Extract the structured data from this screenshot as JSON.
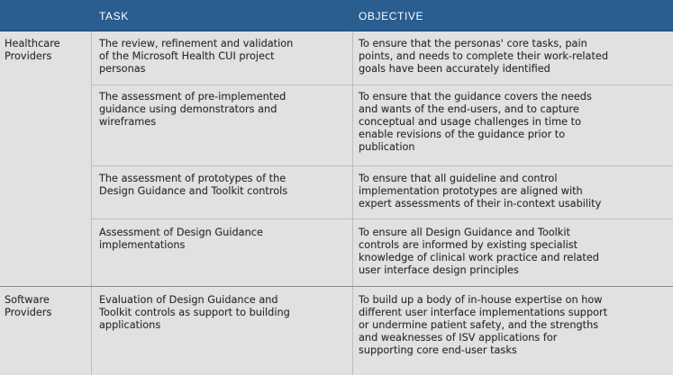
{
  "headers": {
    "task": "TASK",
    "objective": "OBJECTIVE"
  },
  "groups": [
    {
      "label": [
        "Healthcare",
        "Providers"
      ]
    },
    {
      "label": [
        "Software",
        "Providers"
      ]
    }
  ],
  "rows": [
    {
      "task": [
        "The review, refinement and validation",
        "of the Microsoft Health CUI project",
        "personas"
      ],
      "objective": [
        "To ensure that the personas' core tasks, pain",
        "points, and needs to complete their work-related",
        "goals have been accurately identified"
      ]
    },
    {
      "task": [
        "The assessment of pre-implemented",
        "guidance using demonstrators and",
        "wireframes"
      ],
      "objective": [
        "To ensure that the guidance covers the needs",
        "and wants of the end-users, and to capture",
        "conceptual and usage challenges in time to",
        "enable revisions of the guidance prior to",
        "publication"
      ]
    },
    {
      "task": [
        "The assessment of prototypes of the",
        "Design Guidance and Toolkit controls"
      ],
      "objective": [
        "To ensure that all guideline and control",
        "implementation prototypes are aligned with",
        "expert assessments of their in-context usability"
      ]
    },
    {
      "task": [
        "Assessment of Design Guidance",
        "implementations"
      ],
      "objective": [
        "To ensure all Design Guidance and Toolkit",
        "controls are informed by existing specialist",
        "knowledge of clinical work practice and related",
        "user interface design principles"
      ]
    },
    {
      "task": [
        "Evaluation of Design Guidance and",
        "Toolkit controls as support to building",
        "applications"
      ],
      "objective": [
        "To build up a body of in-house expertise on how",
        "different user interface implementations support",
        "or undermine patient safety, and the strengths",
        "and weaknesses of ISV applications for",
        "supporting core end-user tasks"
      ]
    }
  ]
}
